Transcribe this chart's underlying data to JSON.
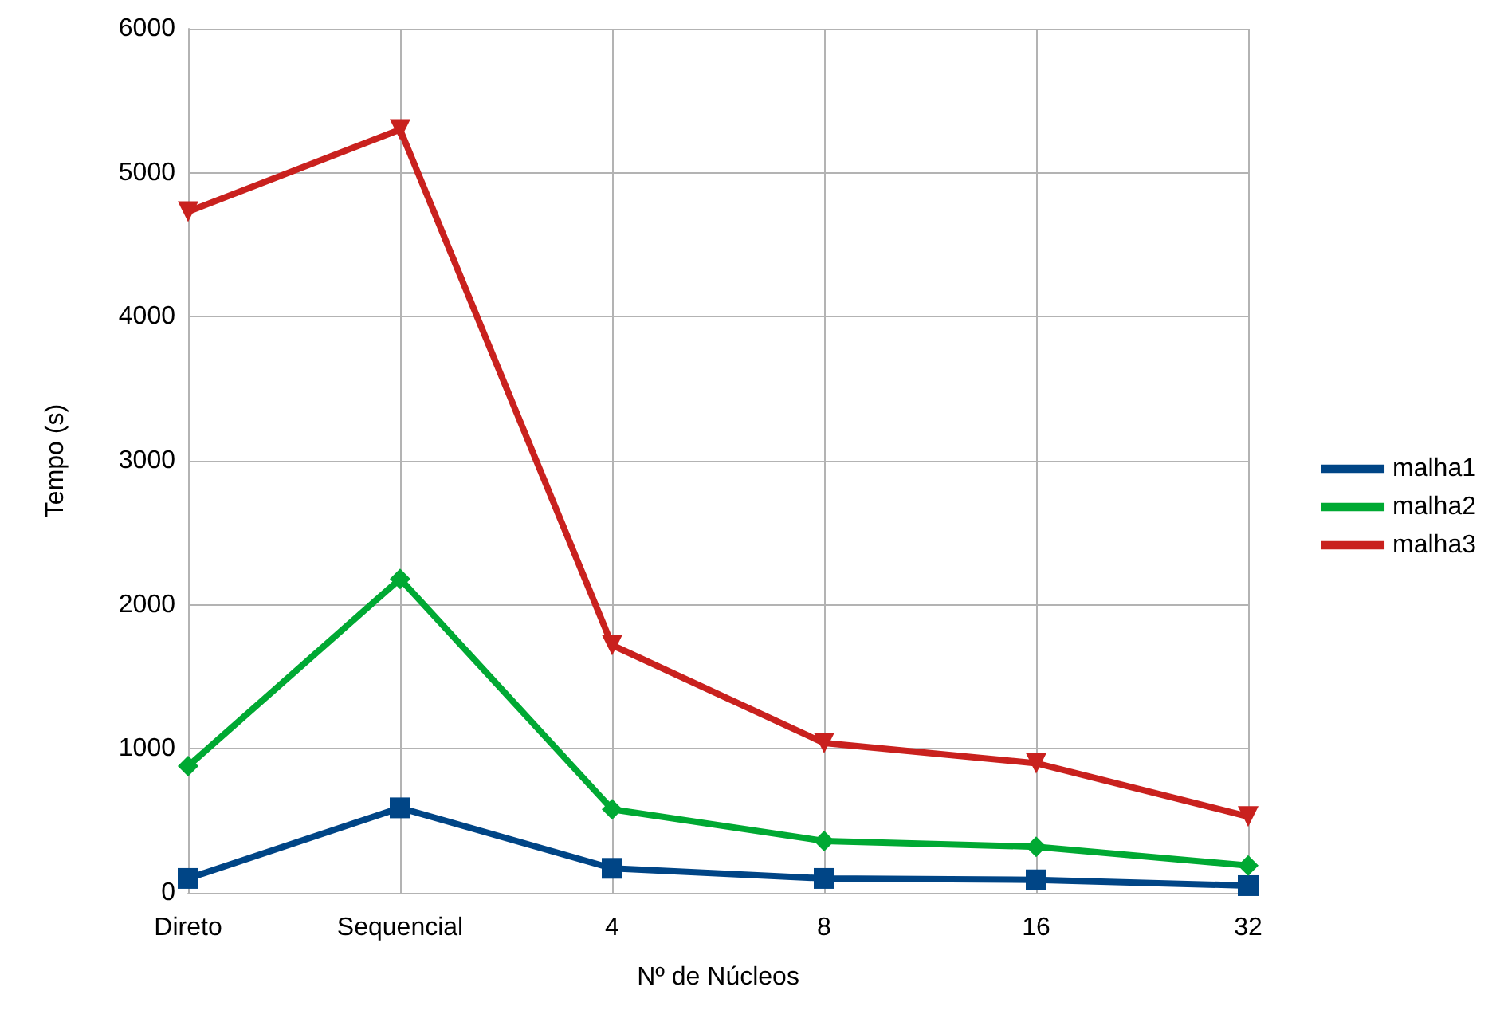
{
  "chart_data": {
    "type": "line",
    "xlabel": "Nº de Núcleos",
    "ylabel": "Tempo (s)",
    "categories": [
      "Direto",
      "Sequencial",
      "4",
      "8",
      "16",
      "32"
    ],
    "series": [
      {
        "name": "malha1",
        "color": "#004586",
        "marker": "square",
        "values": [
          100,
          590,
          170,
          100,
          90,
          50
        ]
      },
      {
        "name": "malha2",
        "color": "#00a933",
        "marker": "diamond",
        "values": [
          880,
          2180,
          580,
          360,
          320,
          190
        ]
      },
      {
        "name": "malha3",
        "color": "#c9211e",
        "marker": "triangle",
        "values": [
          4730,
          5300,
          1720,
          1040,
          900,
          530
        ]
      }
    ],
    "ylim": [
      0,
      6000
    ],
    "yticks": [
      0,
      1000,
      2000,
      3000,
      4000,
      5000,
      6000
    ],
    "grid": true,
    "legend": "right"
  }
}
